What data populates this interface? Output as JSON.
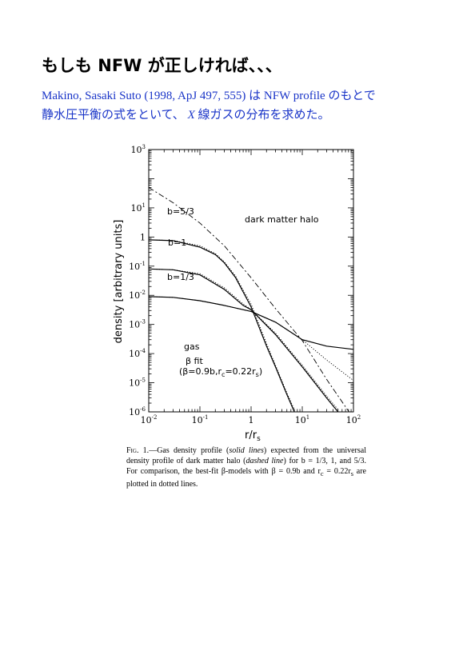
{
  "heading": "もしも NFW が正しければ、、、",
  "subtitle": {
    "line1": "Makino, Sasaki Suto (1998, ApJ 497, 555) は NFW profile のもとで",
    "line2_pre": "静水圧平衡の式をといて、 ",
    "line2_x": "X",
    "line2_post": " 線ガスの分布を求めた。"
  },
  "chart_data": {
    "type": "line",
    "xscale": "log",
    "yscale": "log",
    "xlim": [
      0.01,
      100
    ],
    "ylim": [
      1e-06,
      1000
    ],
    "xlabel": "r/r",
    "xlabel_sub": "s",
    "ylabel": "density [arbitrary units]",
    "x_ticks": [
      {
        "value": 0.01,
        "label": "10",
        "exp": "-2"
      },
      {
        "value": 0.1,
        "label": "10",
        "exp": "-1"
      },
      {
        "value": 1,
        "label": "1",
        "exp": ""
      },
      {
        "value": 10,
        "label": "10",
        "exp": "1"
      },
      {
        "value": 100,
        "label": "10",
        "exp": "2"
      }
    ],
    "y_ticks": [
      {
        "value": 1000,
        "label": "10",
        "exp": "3"
      },
      {
        "value": 10,
        "label": "10",
        "exp": "1"
      },
      {
        "value": 1,
        "label": "1",
        "exp": ""
      },
      {
        "value": 0.1,
        "label": "10",
        "exp": "-1"
      },
      {
        "value": 0.01,
        "label": "10",
        "exp": "-2"
      },
      {
        "value": 0.001,
        "label": "10",
        "exp": "-3"
      },
      {
        "value": 0.0001,
        "label": "10",
        "exp": "-4"
      },
      {
        "value": 1e-05,
        "label": "10",
        "exp": "-5"
      },
      {
        "value": 1e-06,
        "label": "10",
        "exp": "-6"
      }
    ],
    "annotations": {
      "b53": "b=5/3",
      "b1": "b=1",
      "b13": "b=1/3",
      "halo": "dark matter halo",
      "gas": "gas",
      "fit1": "β  fit",
      "fit2": "(β=0.9b,r",
      "fit2_sub": "c",
      "fit3": "=0.22r",
      "fit3_sub": "s",
      "fit4": ")"
    },
    "series": [
      {
        "name": "dark matter halo",
        "style": "dashed",
        "x": [
          0.01,
          0.03,
          0.1,
          0.3,
          1,
          3,
          10,
          30,
          100
        ],
        "y": [
          50,
          15,
          3,
          0.5,
          0.04,
          0.0035,
          0.00028,
          1.3e-05,
          6e-07
        ]
      },
      {
        "name": "b=5/3",
        "style": "solid",
        "x": [
          0.01,
          0.03,
          0.1,
          0.2,
          0.3,
          0.5,
          0.7,
          1,
          2,
          3,
          5,
          7
        ],
        "y": [
          0.8,
          0.75,
          0.45,
          0.25,
          0.13,
          0.04,
          0.013,
          0.004,
          0.00018,
          3.5e-05,
          4e-06,
          1e-06
        ]
      },
      {
        "name": "b=5/3 β-fit",
        "style": "dotted",
        "x": [
          0.01,
          0.03,
          0.1,
          0.2,
          0.3,
          0.5,
          0.7,
          1,
          2,
          3,
          5,
          7
        ],
        "y": [
          0.8,
          0.76,
          0.5,
          0.27,
          0.14,
          0.045,
          0.015,
          0.005,
          0.00022,
          4e-05,
          4.5e-06,
          1.2e-06
        ]
      },
      {
        "name": "b=1",
        "style": "solid",
        "x": [
          0.01,
          0.03,
          0.1,
          0.3,
          0.7,
          1,
          3,
          10,
          30,
          50
        ],
        "y": [
          0.08,
          0.075,
          0.05,
          0.016,
          0.0045,
          0.0032,
          0.00045,
          3.5e-05,
          3e-06,
          1e-06
        ]
      },
      {
        "name": "b=1 β-fit",
        "style": "dotted",
        "x": [
          0.01,
          0.03,
          0.1,
          0.3,
          0.7,
          1,
          3,
          10,
          30,
          50
        ],
        "y": [
          0.08,
          0.075,
          0.055,
          0.018,
          0.005,
          0.0033,
          0.0005,
          4e-05,
          3.5e-06,
          1.2e-06
        ]
      },
      {
        "name": "b=1/3",
        "style": "solid",
        "x": [
          0.01,
          0.03,
          0.1,
          0.3,
          1,
          3,
          10,
          30,
          100
        ],
        "y": [
          0.009,
          0.0085,
          0.0065,
          0.0045,
          0.0028,
          0.0012,
          0.0003,
          0.00018,
          0.00014
        ]
      },
      {
        "name": "b=1/3 β-fit",
        "style": "dotted",
        "x": [
          0.01,
          0.03,
          0.1,
          0.3,
          1,
          3,
          10,
          30,
          100
        ],
        "y": [
          0.009,
          0.0085,
          0.0065,
          0.0045,
          0.0028,
          0.0012,
          0.0003,
          6e-05,
          1.2e-05
        ]
      }
    ]
  },
  "caption": {
    "fig": "Fig. 1.",
    "part1": "—Gas density profile (",
    "solid": "solid lines",
    "part2": ") expected from the universal density profile of dark matter halo (",
    "dashed": "dashed line",
    "part3": ") for b = 1/3, 1, and 5/3. For comparison, the best-fit β-models with β = 0.9b and r",
    "sub_c": "c",
    "part4": " = 0.22r",
    "sub_s": "s",
    "part5": " are plotted in dotted lines."
  }
}
